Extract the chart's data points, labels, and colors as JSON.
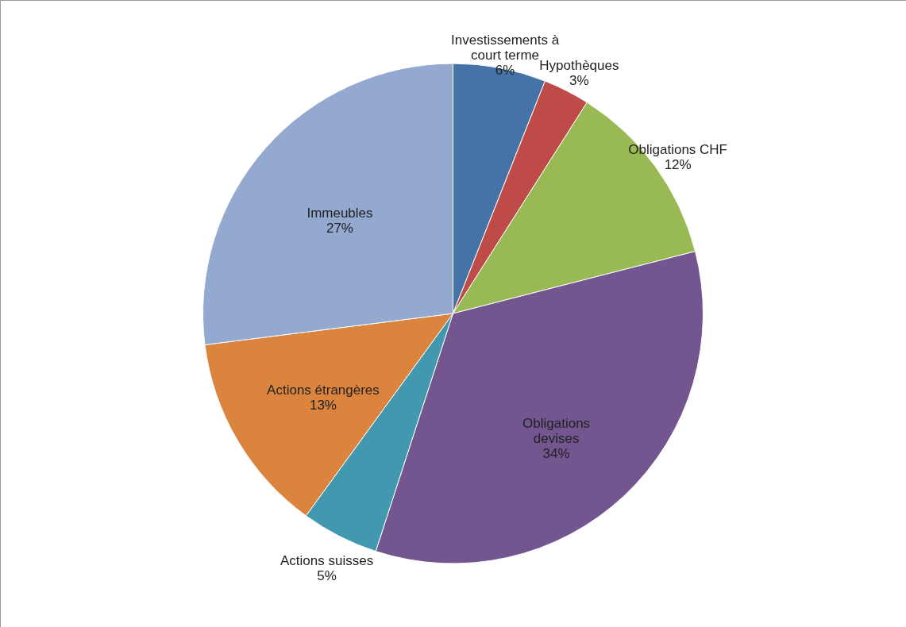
{
  "chart_data": {
    "type": "pie",
    "categories": [
      "Investissements à court terme",
      "Hypothèques",
      "Obligations CHF",
      "Obligations devises",
      "Actions suisses",
      "Actions étrangères",
      "Immeubles"
    ],
    "values": [
      6,
      3,
      12,
      34,
      5,
      13,
      27
    ],
    "colors": [
      "#4572a7",
      "#be4b48",
      "#98b954",
      "#735590",
      "#4198af",
      "#db843d",
      "#93a9cf"
    ],
    "value_labels": [
      "6%",
      "3%",
      "12%",
      "34%",
      "5%",
      "13%",
      "27%"
    ],
    "legend": false
  }
}
